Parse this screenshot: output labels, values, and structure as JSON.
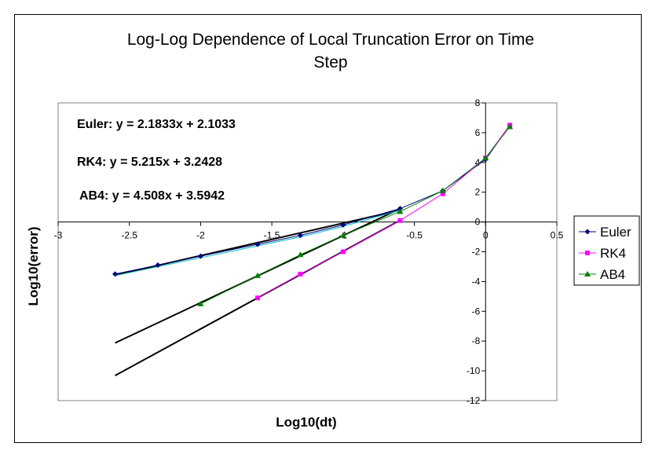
{
  "chart_data": {
    "type": "line",
    "title": "Log-Log Dependence of Local Truncation Error on Time Step",
    "title_lines": [
      "Log-Log Dependence of Local Truncation Error on Time",
      "Step"
    ],
    "xlabel": "Log10(dt)",
    "ylabel": "Log10(error)",
    "xlim": [
      -3,
      0.5
    ],
    "ylim": [
      -12,
      8
    ],
    "x_ticks": [
      "-3",
      "-2.5",
      "-2",
      "-1.5",
      "-1",
      "-0.5",
      "0",
      "0.5"
    ],
    "x_tick_values": [
      -3,
      -2.5,
      -2,
      -1.5,
      -1,
      -0.5,
      0,
      0.5
    ],
    "y_ticks": [
      "8",
      "6",
      "4",
      "2",
      "0",
      "-2",
      "-4",
      "-6",
      "-8",
      "-10",
      "-12"
    ],
    "y_tick_values": [
      8,
      6,
      4,
      2,
      0,
      -2,
      -4,
      -6,
      -8,
      -10,
      -12
    ],
    "grid": false,
    "legend_position": "right",
    "series": [
      {
        "name": "Euler",
        "color": "#000080",
        "marker": "diamond",
        "x": [
          -2.6,
          -2.3,
          -2.0,
          -1.6,
          -1.3,
          -1.0,
          -0.6,
          -0.3,
          0.0,
          0.17
        ],
        "y": [
          -3.5,
          -2.9,
          -2.3,
          -1.5,
          -0.9,
          -0.2,
          0.9,
          2.1,
          4.2,
          6.5
        ]
      },
      {
        "name": "RK4",
        "color": "#ff00ff",
        "marker": "square",
        "x": [
          -1.6,
          -1.3,
          -1.0,
          -0.6,
          -0.3,
          0.0,
          0.17
        ],
        "y": [
          -5.1,
          -3.5,
          -2.0,
          0.1,
          1.9,
          4.3,
          6.5
        ]
      },
      {
        "name": "AB4",
        "color": "#008000",
        "marker": "triangle",
        "x": [
          -2.0,
          -1.6,
          -1.3,
          -1.0,
          -0.6,
          -0.3,
          0.0,
          0.17
        ],
        "y": [
          -5.5,
          -3.6,
          -2.2,
          -0.9,
          0.7,
          2.1,
          4.3,
          6.4
        ]
      }
    ],
    "trendlines": [
      {
        "label": "Euler: y = 2.1833x + 2.1033",
        "slope": 2.1833,
        "intercept": 2.1033,
        "x_range": [
          -2.6,
          -0.6
        ]
      },
      {
        "label": "RK4: y = 5.215x + 3.2428",
        "slope": 5.215,
        "intercept": 3.2428,
        "x_range": [
          -2.6,
          -0.6
        ]
      },
      {
        "label": "AB4: y = 4.508x + 3.5942",
        "slope": 4.508,
        "intercept": 3.5942,
        "x_range": [
          -2.6,
          -0.6
        ]
      }
    ],
    "trend_color": "#000000",
    "extra_line_color": "#00c0c0"
  }
}
